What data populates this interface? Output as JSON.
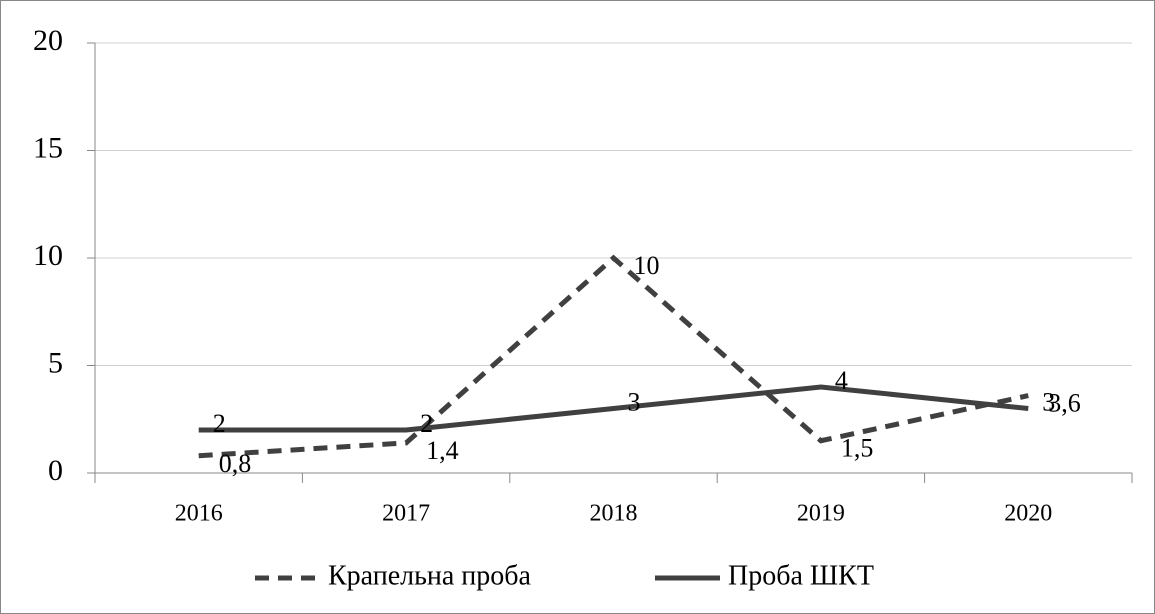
{
  "chart_data": {
    "type": "line",
    "categories": [
      "2016",
      "2017",
      "2018",
      "2019",
      "2020"
    ],
    "series": [
      {
        "name": "Крапельна проба",
        "color": "#404040",
        "dash": true,
        "values": [
          0.8,
          1.4,
          10,
          1.5,
          3.6
        ],
        "value_labels": [
          "0,8",
          "1,4",
          "10",
          "1,5",
          "3,6"
        ]
      },
      {
        "name": "Проба ШКТ",
        "color": "#404040",
        "dash": false,
        "values": [
          2,
          2,
          3,
          4,
          3
        ]
      }
    ],
    "ylim": [
      0,
      20
    ],
    "yticks": [
      0,
      5,
      10,
      15,
      20
    ],
    "grid": true,
    "legend": "bottom"
  }
}
